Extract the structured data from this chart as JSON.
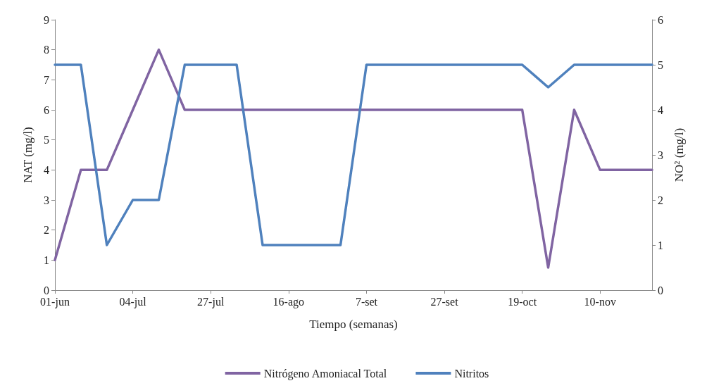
{
  "chart_data": {
    "type": "line",
    "xlabel": "Tiempo (semanas)",
    "ylabel": "NAT (mg/l)",
    "y2label": "NO² (mg/l)",
    "categories": [
      "01-jun",
      null,
      null,
      "04-jul",
      null,
      null,
      "27-jul",
      null,
      null,
      "16-ago",
      null,
      null,
      "7-set",
      null,
      null,
      "27-set",
      null,
      null,
      "19-oct",
      null,
      null,
      "10-nov",
      null,
      null
    ],
    "series": [
      {
        "name": "Nitrógeno Amoniacal Total",
        "color": "#8064a2",
        "values": [
          1,
          4,
          4,
          6,
          8,
          6,
          6,
          6,
          6,
          6,
          6,
          6,
          6,
          6,
          6,
          6,
          6,
          6,
          6,
          0.75,
          6,
          4,
          4,
          4
        ]
      },
      {
        "name": "Nitritos",
        "color": "#4f81bd",
        "axis": "y2",
        "values": [
          5,
          5,
          1,
          2,
          2,
          5,
          5,
          5,
          1,
          1,
          1,
          1,
          5,
          5,
          5,
          5,
          5,
          5,
          5,
          4.5,
          5,
          5,
          5,
          5
        ]
      }
    ],
    "ylim": [
      0,
      9
    ],
    "yticks": [
      0,
      1,
      2,
      3,
      4,
      5,
      6,
      7,
      8,
      9
    ],
    "y2lim": [
      0,
      6
    ],
    "y2ticks": [
      0,
      1,
      2,
      3,
      4,
      5,
      6
    ],
    "grid": false,
    "legend": "bottom",
    "marker": "none",
    "line_style": "solid"
  }
}
